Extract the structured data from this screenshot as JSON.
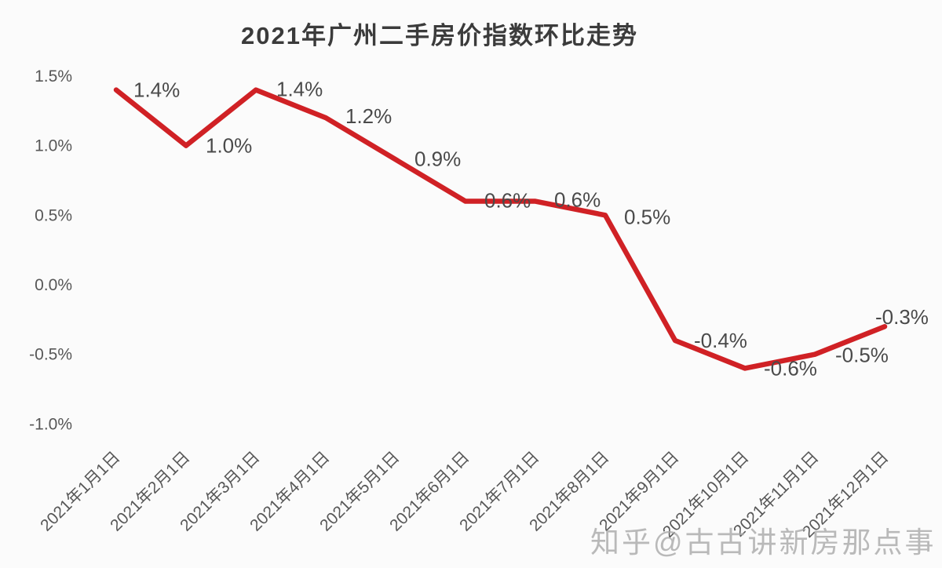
{
  "title": "2021年广州二手房价指数环比走势",
  "watermark": "知乎@古古讲新房那点事",
  "chart_data": {
    "type": "line",
    "title": "2021年广州二手房价指数环比走势",
    "categories": [
      "2021年1月1日",
      "2021年2月1日",
      "2021年3月1日",
      "2021年4月1日",
      "2021年5月1日",
      "2021年6月1日",
      "2021年7月1日",
      "2021年8月1日",
      "2021年9月1日",
      "2021年10月1日",
      "2021年11月1日",
      "2021年12月1日"
    ],
    "values": [
      1.4,
      1.0,
      1.4,
      1.2,
      0.9,
      0.6,
      0.6,
      0.5,
      -0.4,
      -0.6,
      -0.5,
      -0.3
    ],
    "point_labels": [
      "1.4%",
      "1.0%",
      "1.4%",
      "1.2%",
      "0.9%",
      "0.6%",
      "0.6%",
      "0.5%",
      "-0.4%",
      "-0.6%",
      "-0.5%",
      "-0.3%"
    ],
    "xlabel": "",
    "ylabel": "",
    "y_ticks": {
      "labels": [
        "1.5%",
        "1.0%",
        "0.5%",
        "0.0%",
        "-0.5%",
        "-1.0%"
      ],
      "values": [
        1.5,
        1.0,
        0.5,
        0.0,
        -0.5,
        -1.0
      ]
    },
    "ylim": [
      -1.0,
      1.5
    ],
    "grid": false,
    "legend": "none",
    "colors": {
      "line": "#d02125",
      "point_label": "#4a4a4a",
      "axis_tick": "#575757",
      "title": "#3b3b3b",
      "background": "#fbfbfb",
      "watermark": "#a9a9a9"
    }
  }
}
